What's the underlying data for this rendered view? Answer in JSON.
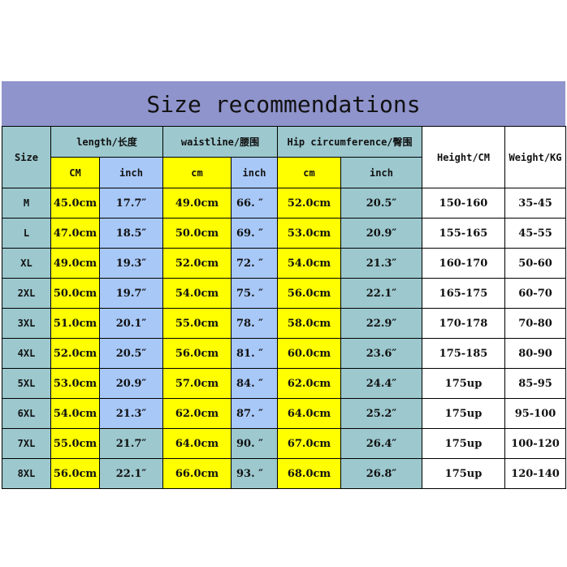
{
  "title": "Size recommendations",
  "header": {
    "size": "Size",
    "length": "length/长度",
    "waist": "waistline/腰围",
    "hip": "Hip circumference/臀围",
    "height": "Height/CM",
    "weight": "Weight/KG",
    "length_cm": "CM",
    "length_inch": "inch",
    "waist_cm": "cm",
    "waist_inch": "inch",
    "hip_cm": "cm",
    "hip_inch": "inch"
  },
  "colors": {
    "title_band": "#9094cc",
    "teal": "#9cc8ce",
    "yellow": "#ffff00",
    "blue": "#a8c8f8"
  },
  "rows": [
    {
      "size": "M",
      "len_cm": "45.0cm",
      "len_in": "17.7″",
      "waist_cm": "49.0cm",
      "waist_in": "66. ″",
      "hip_cm": "52.0cm",
      "hip_in": "20.5″",
      "height": "150-160",
      "weight": "35-45"
    },
    {
      "size": "L",
      "len_cm": "47.0cm",
      "len_in": "18.5″",
      "waist_cm": "50.0cm",
      "waist_in": "69. ″",
      "hip_cm": "53.0cm",
      "hip_in": "20.9″",
      "height": "155-165",
      "weight": "45-55"
    },
    {
      "size": "XL",
      "len_cm": "49.0cm",
      "len_in": "19.3″",
      "waist_cm": "52.0cm",
      "waist_in": "72. ″",
      "hip_cm": "54.0cm",
      "hip_in": "21.3″",
      "height": "160-170",
      "weight": "50-60"
    },
    {
      "size": "2XL",
      "len_cm": "50.0cm",
      "len_in": "19.7″",
      "waist_cm": "54.0cm",
      "waist_in": "75. ″",
      "hip_cm": "56.0cm",
      "hip_in": "22.1″",
      "height": "165-175",
      "weight": "60-70"
    },
    {
      "size": "3XL",
      "len_cm": "51.0cm",
      "len_in": "20.1″",
      "waist_cm": "55.0cm",
      "waist_in": "78. ″",
      "hip_cm": "58.0cm",
      "hip_in": "22.9″",
      "height": "170-178",
      "weight": "70-80"
    },
    {
      "size": "4XL",
      "len_cm": "52.0cm",
      "len_in": "20.5″",
      "waist_cm": "56.0cm",
      "waist_in": "81. ″",
      "hip_cm": "60.0cm",
      "hip_in": "23.6″",
      "height": "175-185",
      "weight": "80-90"
    },
    {
      "size": "5XL",
      "len_cm": "53.0cm",
      "len_in": "20.9″",
      "waist_cm": "57.0cm",
      "waist_in": "84. ″",
      "hip_cm": "62.0cm",
      "hip_in": "24.4″",
      "height": "175up",
      "weight": "85-95"
    },
    {
      "size": "6XL",
      "len_cm": "54.0cm",
      "len_in": "21.3″",
      "waist_cm": "62.0cm",
      "waist_in": "87. ″",
      "hip_cm": "64.0cm",
      "hip_in": "25.2″",
      "height": "175up",
      "weight": "95-100"
    },
    {
      "size": "7XL",
      "len_cm": "55.0cm",
      "len_in": "21.7″",
      "waist_cm": "64.0cm",
      "waist_in": "90. ″",
      "hip_cm": "67.0cm",
      "hip_in": "26.4″",
      "height": "175up",
      "weight": "100-120"
    },
    {
      "size": "8XL",
      "len_cm": "56.0cm",
      "len_in": "22.1″",
      "waist_cm": "66.0cm",
      "waist_in": "93. ″",
      "hip_cm": "68.0cm",
      "hip_in": "26.8″",
      "height": "175up",
      "weight": "120-140"
    }
  ]
}
